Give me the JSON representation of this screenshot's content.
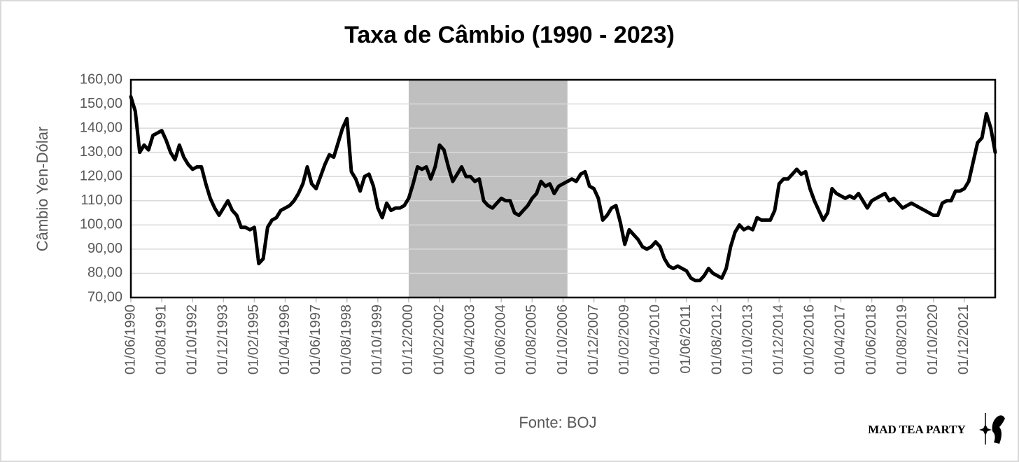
{
  "chart_data": {
    "type": "line",
    "title": "Taxa de Câmbio (1990 - 2023)",
    "y_label": "Câmbio Yen-Dólar",
    "x_label": "Fonte: BOJ",
    "brand": "MAD TEA PARTY",
    "categories": [
      "01/06/1990",
      null,
      null,
      null,
      null,
      null,
      null,
      "01/08/1991",
      null,
      null,
      null,
      null,
      null,
      null,
      "01/10/1992",
      null,
      null,
      null,
      null,
      null,
      null,
      "01/12/1993",
      null,
      null,
      null,
      null,
      null,
      null,
      "01/02/1995",
      null,
      null,
      null,
      null,
      null,
      null,
      "01/04/1996",
      null,
      null,
      null,
      null,
      null,
      null,
      "01/06/1997",
      null,
      null,
      null,
      null,
      null,
      null,
      "01/08/1998",
      null,
      null,
      null,
      null,
      null,
      null,
      "01/10/1999",
      null,
      null,
      null,
      null,
      null,
      null,
      "01/12/2000",
      null,
      null,
      null,
      null,
      null,
      null,
      "01/02/2002",
      null,
      null,
      null,
      null,
      null,
      null,
      "01/04/2003",
      null,
      null,
      null,
      null,
      null,
      null,
      "01/06/2004",
      null,
      null,
      null,
      null,
      null,
      null,
      "01/08/2005",
      null,
      null,
      null,
      null,
      null,
      null,
      "01/10/2006",
      null,
      null,
      null,
      null,
      null,
      null,
      "01/12/2007",
      null,
      null,
      null,
      null,
      null,
      null,
      "01/02/2009",
      null,
      null,
      null,
      null,
      null,
      null,
      "01/04/2010",
      null,
      null,
      null,
      null,
      null,
      null,
      "01/06/2011",
      null,
      null,
      null,
      null,
      null,
      null,
      "01/08/2012",
      null,
      null,
      null,
      null,
      null,
      null,
      "01/10/2013",
      null,
      null,
      null,
      null,
      null,
      null,
      "01/12/2014",
      null,
      null,
      null,
      null,
      null,
      null,
      "01/02/2016",
      null,
      null,
      null,
      null,
      null,
      null,
      "01/04/2017",
      null,
      null,
      null,
      null,
      null,
      null,
      "01/06/2018",
      null,
      null,
      null,
      null,
      null,
      null,
      "01/08/2019",
      null,
      null,
      null,
      null,
      null,
      null,
      "01/10/2020",
      null,
      null,
      null,
      null,
      null,
      null,
      "01/12/2021",
      null,
      null,
      null,
      null,
      null,
      null,
      null
    ],
    "values": [
      153,
      147,
      130,
      133,
      131,
      137,
      138,
      139,
      135,
      130,
      127,
      133,
      128,
      125,
      123,
      124,
      124,
      117,
      111,
      107,
      104,
      107,
      110,
      106,
      104,
      99,
      99,
      98,
      99,
      84,
      86,
      99,
      102,
      103,
      106,
      107,
      108,
      110,
      113,
      117,
      124,
      117,
      115,
      120,
      125,
      129,
      128,
      134,
      140,
      144,
      122,
      119,
      114,
      120,
      121,
      116,
      107,
      103,
      109,
      106,
      107,
      107,
      108,
      111,
      117,
      124,
      123,
      124,
      119,
      124,
      133,
      131,
      124,
      118,
      121,
      124,
      120,
      120,
      118,
      119,
      110,
      108,
      107,
      109,
      111,
      110,
      110,
      105,
      104,
      106,
      108,
      111,
      113,
      118,
      116,
      117,
      113,
      116,
      117,
      118,
      119,
      118,
      121,
      122,
      116,
      115,
      111,
      102,
      104,
      107,
      108,
      101,
      92,
      98,
      96,
      94,
      91,
      90,
      91,
      93,
      91,
      86,
      83,
      82,
      83,
      82,
      81,
      78,
      77,
      77,
      79,
      82,
      80,
      79,
      78,
      82,
      91,
      97,
      100,
      98,
      99,
      98,
      103,
      102,
      102,
      102,
      106,
      117,
      119,
      119,
      121,
      123,
      121,
      122,
      115,
      110,
      106,
      102,
      105,
      115,
      113,
      112,
      111,
      112,
      111,
      113,
      110,
      107,
      110,
      111,
      112,
      113,
      110,
      111,
      109,
      107,
      108,
      109,
      108,
      107,
      106,
      105,
      104,
      104,
      109,
      110,
      110,
      114,
      114,
      115,
      118,
      126,
      134,
      136,
      146,
      140,
      130
    ],
    "color": "#000000",
    "shade": {
      "from": 63,
      "to": 99,
      "color": "#bfbfbf"
    },
    "ylim": [
      70,
      160
    ],
    "yticks": [
      {
        "value": 70,
        "label": "70,00"
      },
      {
        "value": 80,
        "label": "80,00"
      },
      {
        "value": 90,
        "label": "90,00"
      },
      {
        "value": 100,
        "label": "100,00"
      },
      {
        "value": 110,
        "label": "110,00"
      },
      {
        "value": 120,
        "label": "120,00"
      },
      {
        "value": 130,
        "label": "130,00"
      },
      {
        "value": 140,
        "label": "140,00"
      },
      {
        "value": 150,
        "label": "150,00"
      },
      {
        "value": 160,
        "label": "160,00"
      }
    ],
    "grid": true
  }
}
